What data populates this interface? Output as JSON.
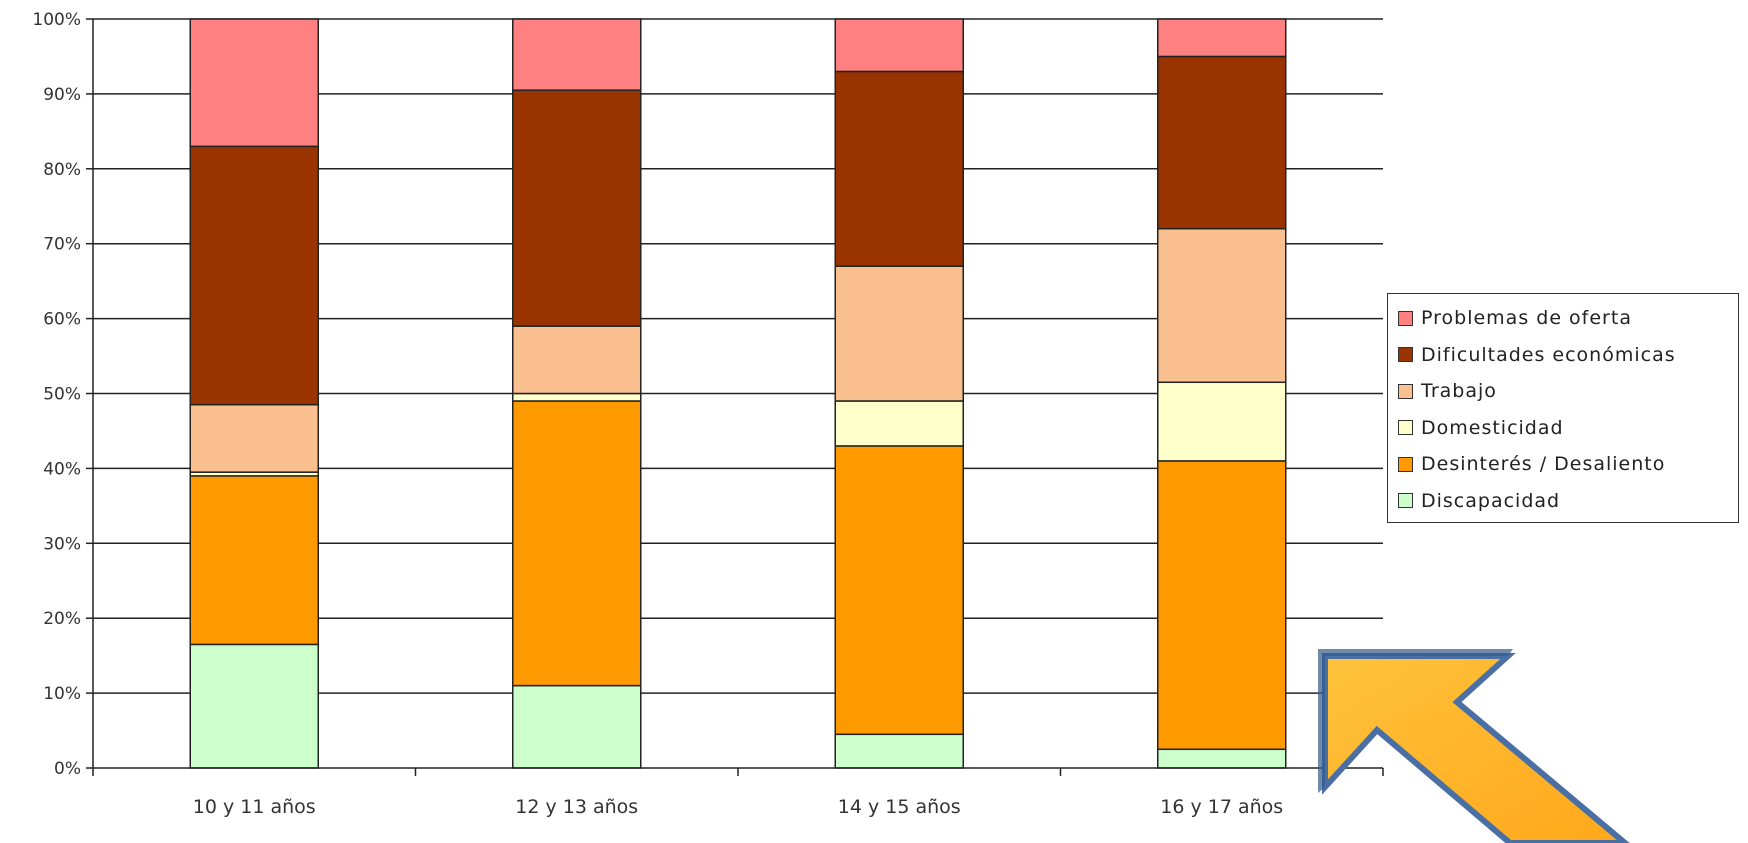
{
  "chart_data": {
    "type": "bar",
    "stacked": true,
    "categories": [
      "10 y 11 años",
      "12 y 13 años",
      "14 y 15 años",
      "16 y 17 años"
    ],
    "series": [
      {
        "name": "Discapacidad",
        "color": "#ccffcc",
        "values": [
          16.5,
          11,
          4.5,
          2.5
        ]
      },
      {
        "name": "Desinterés / Desaliento",
        "color": "#ff9900",
        "values": [
          22.5,
          38,
          38.5,
          38.5
        ]
      },
      {
        "name": "Domesticidad",
        "color": "#ffffcc",
        "values": [
          0.5,
          1,
          6,
          10.5
        ]
      },
      {
        "name": "Trabajo",
        "color": "#fac090",
        "values": [
          9,
          9,
          18,
          20.5
        ]
      },
      {
        "name": "Dificultades económicas",
        "color": "#993300",
        "values": [
          34.5,
          31.5,
          26,
          23
        ]
      },
      {
        "name": "Problemas de oferta",
        "color": "#ff8080",
        "values": [
          17,
          9.5,
          7,
          5
        ]
      }
    ],
    "legend_order": [
      "Problemas de oferta",
      "Dificultades económicas",
      "Trabajo",
      "Domesticidad",
      "Desinterés / Desaliento",
      "Discapacidad"
    ],
    "ylim": [
      0,
      100
    ],
    "yticks": [
      "0%",
      "10%",
      "20%",
      "30%",
      "40%",
      "50%",
      "60%",
      "70%",
      "80%",
      "90%",
      "100%"
    ],
    "grid": true,
    "legend_position": "right"
  },
  "annotation": {
    "arrow_fill": "#ffb020",
    "arrow_stroke": "#4a6fa5",
    "arrow_icon": "arrow-up-left-icon"
  }
}
